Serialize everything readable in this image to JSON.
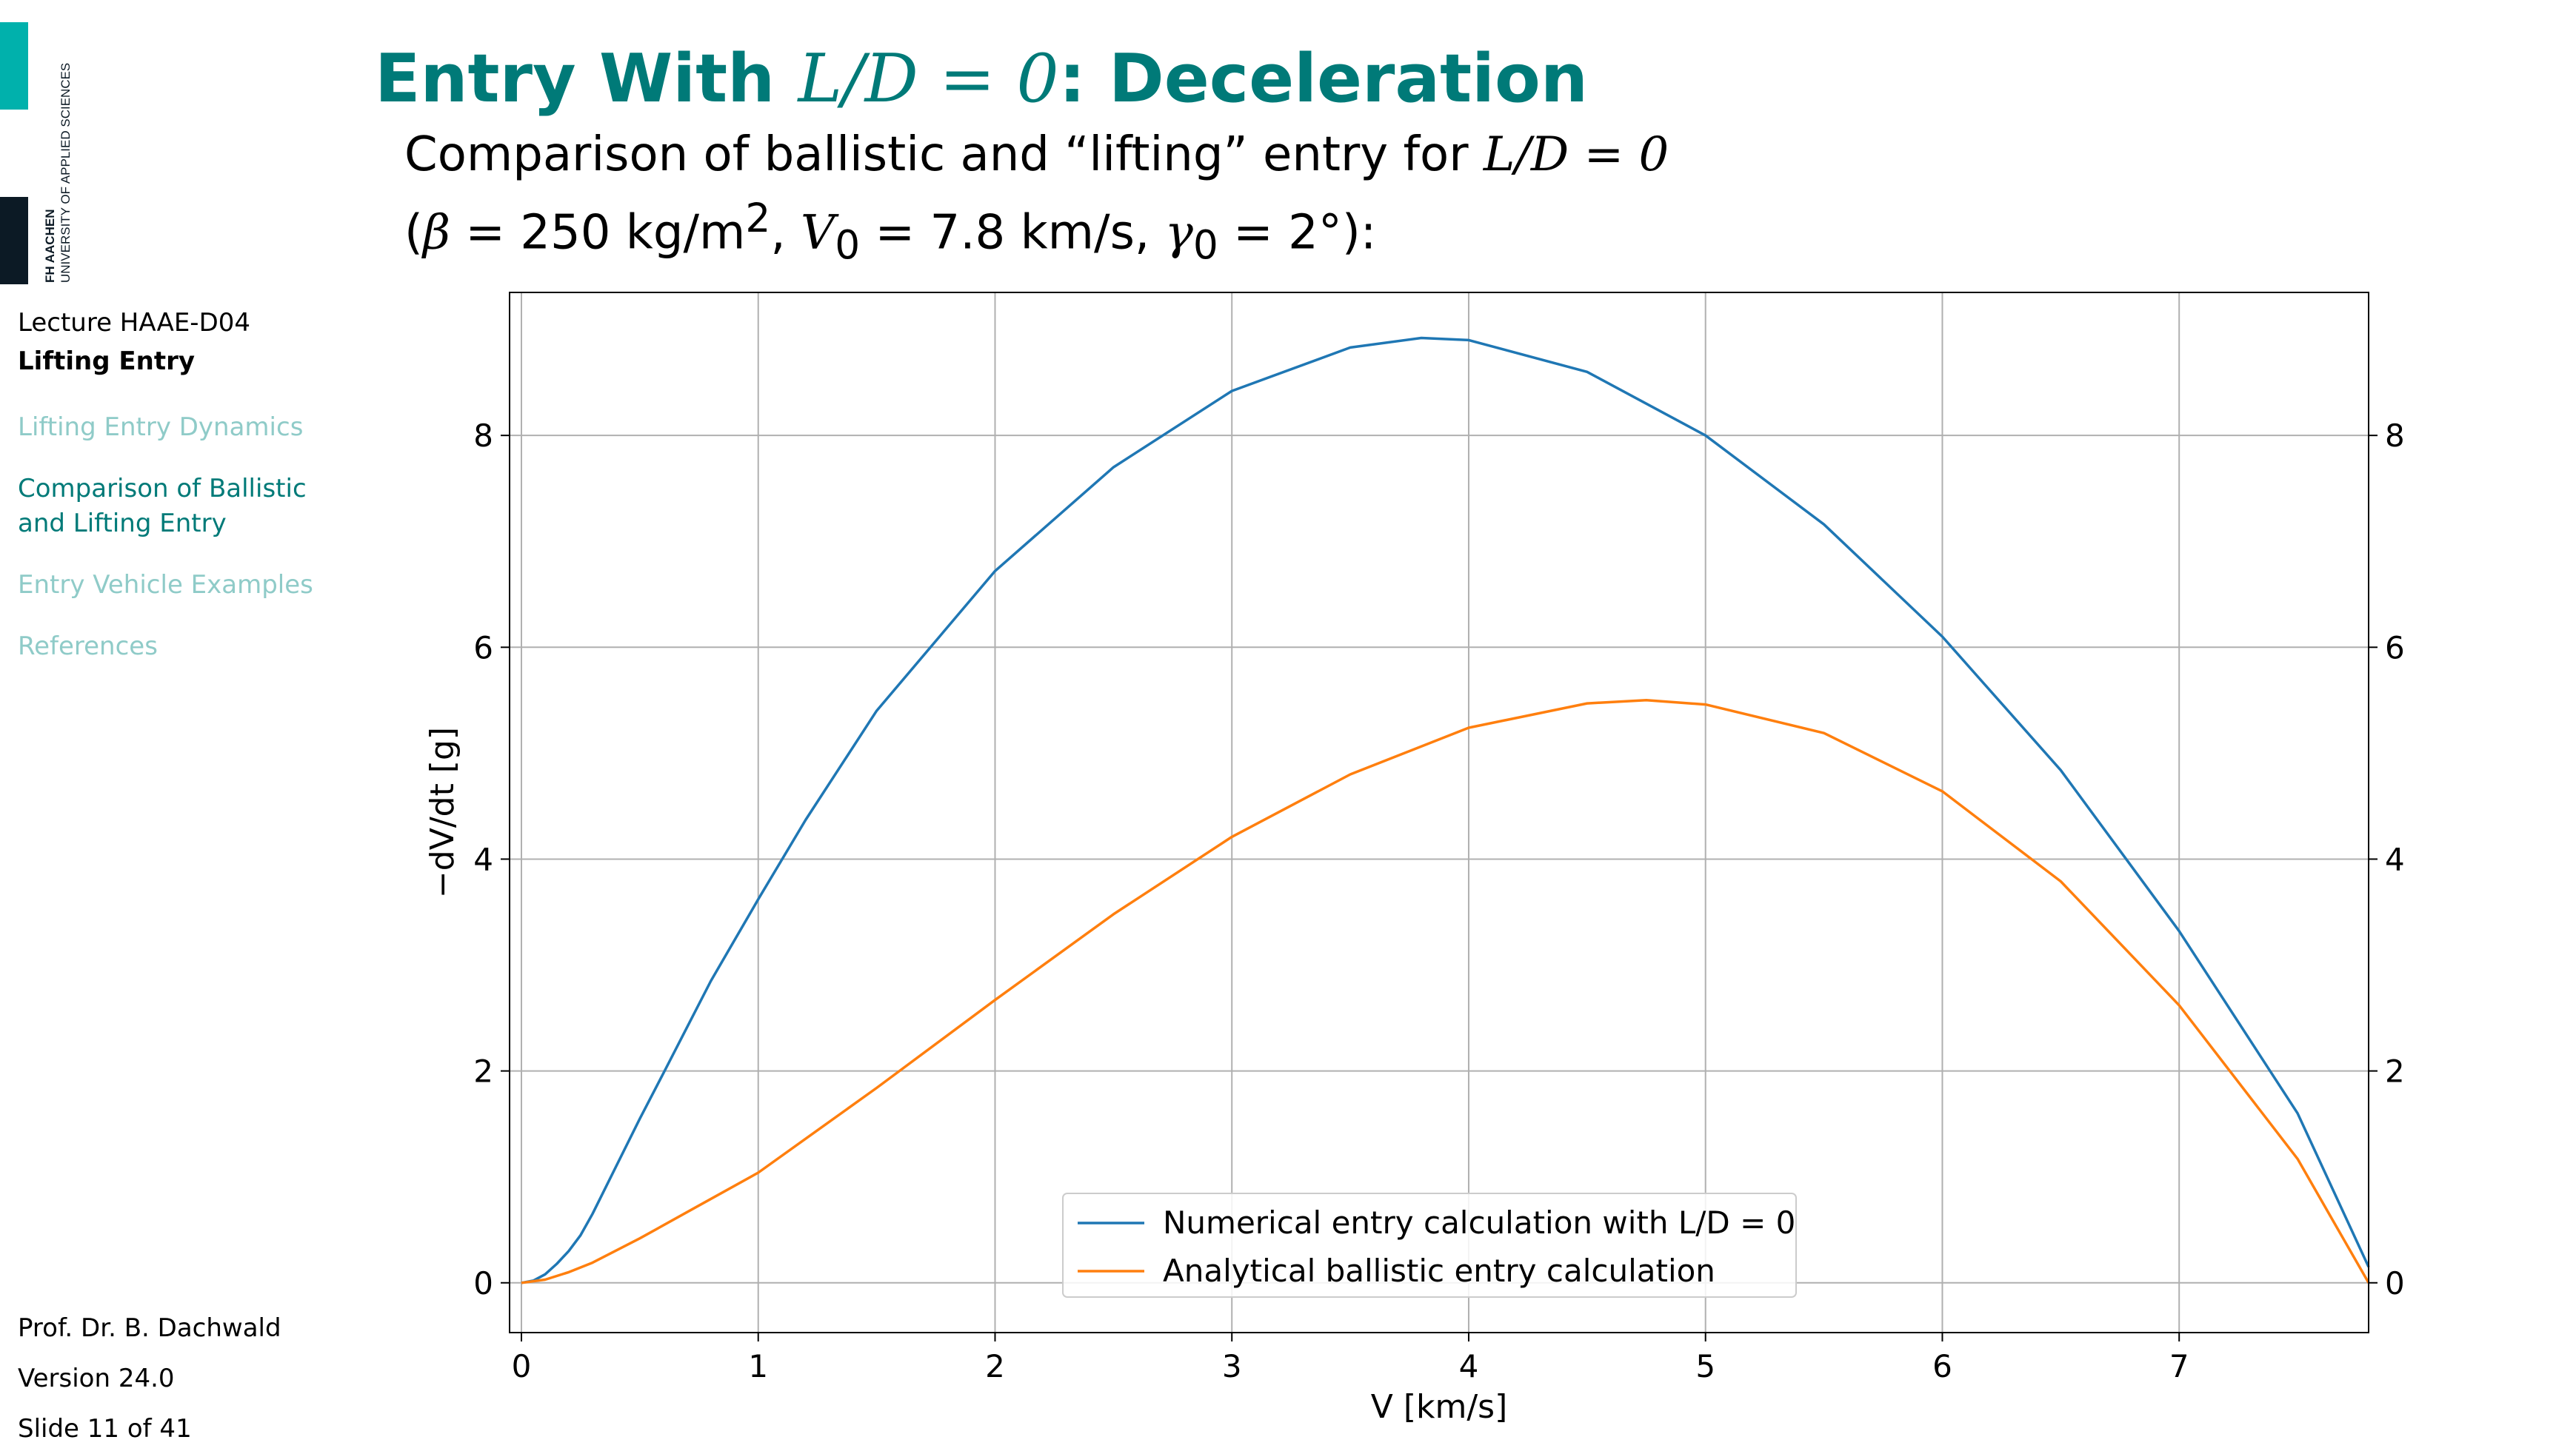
{
  "logo": {
    "name": "FH AACHEN",
    "tagline": "UNIVERSITY OF APPLIED SCIENCES",
    "colors": {
      "teal": "#00b1ac",
      "dark": "#0c1a25"
    }
  },
  "sidebar": {
    "lecture_code": "Lecture HAAE-D04",
    "lecture_title": "Lifting Entry",
    "nav": [
      {
        "label": "Lifting Entry Dynamics",
        "active": false
      },
      {
        "label": "Comparison of Ballistic and Lifting Entry",
        "active": true
      },
      {
        "label": "Entry Vehicle Examples",
        "active": false
      },
      {
        "label": "References",
        "active": false
      }
    ]
  },
  "footer": {
    "author": "Prof. Dr. B. Dachwald",
    "version": "Version 24.0",
    "slide": "Slide 11 of 41"
  },
  "slide": {
    "title_prefix": "Entry With ",
    "title_math": "L/D = 0",
    "title_suffix": ": Deceleration",
    "subtitle_line1_text": "Comparison of ballistic and “lifting” entry for ",
    "subtitle_line1_math": "L/D = 0",
    "subtitle_line2": {
      "open": "(",
      "beta": "β",
      "beta_value": " = 250 kg/m",
      "beta_exp": "2",
      "sep1": ",  ",
      "v": "V",
      "v_sub": "0",
      "v_value": " = 7.8 km/s,  ",
      "gamma": "γ",
      "gamma_sub": "0",
      "gamma_value": " = 2°",
      "close": "):"
    }
  },
  "colors": {
    "accent": "#007a78",
    "nav_inactive": "#8fcbc8",
    "nav_active": "#007a78"
  },
  "chart_data": {
    "type": "line",
    "xlabel": "V [km/s]",
    "ylabel": "−dV/dt [g]",
    "xlim": [
      -0.05,
      7.8
    ],
    "ylim": [
      -0.47,
      9.35
    ],
    "xticks": [
      0,
      1,
      2,
      3,
      4,
      5,
      6,
      7
    ],
    "yticks": [
      0,
      2,
      4,
      6,
      8
    ],
    "grid": true,
    "right_axis_ticks": true,
    "legend_position": "lower center",
    "series": [
      {
        "name": "Numerical entry calculation with L/D = 0",
        "color": "#1f77b4",
        "x": [
          0,
          0.05,
          0.1,
          0.15,
          0.2,
          0.25,
          0.3,
          0.4,
          0.5,
          0.6,
          0.8,
          1.0,
          1.2,
          1.5,
          2.0,
          2.5,
          3.0,
          3.5,
          3.8,
          4.0,
          4.5,
          5.0,
          5.5,
          6.0,
          6.5,
          7.0,
          7.5,
          7.8
        ],
        "y": [
          0,
          0.02,
          0.08,
          0.18,
          0.3,
          0.45,
          0.65,
          1.1,
          1.55,
          1.98,
          2.85,
          3.62,
          4.37,
          5.4,
          6.72,
          7.7,
          8.42,
          8.83,
          8.92,
          8.9,
          8.6,
          8.0,
          7.16,
          6.1,
          4.84,
          3.32,
          1.6,
          0.15
        ]
      },
      {
        "name": "Analytical ballistic entry calculation",
        "color": "#ff7f0e",
        "x": [
          0,
          0.1,
          0.2,
          0.3,
          0.5,
          0.75,
          1.0,
          1.5,
          2.0,
          2.5,
          3.0,
          3.5,
          4.0,
          4.5,
          4.75,
          5.0,
          5.5,
          6.0,
          6.5,
          7.0,
          7.5,
          7.8
        ],
        "y": [
          0,
          0.03,
          0.1,
          0.19,
          0.42,
          0.73,
          1.04,
          1.84,
          2.67,
          3.48,
          4.21,
          4.8,
          5.24,
          5.47,
          5.5,
          5.46,
          5.19,
          4.64,
          3.79,
          2.62,
          1.17,
          0.0
        ]
      }
    ]
  }
}
